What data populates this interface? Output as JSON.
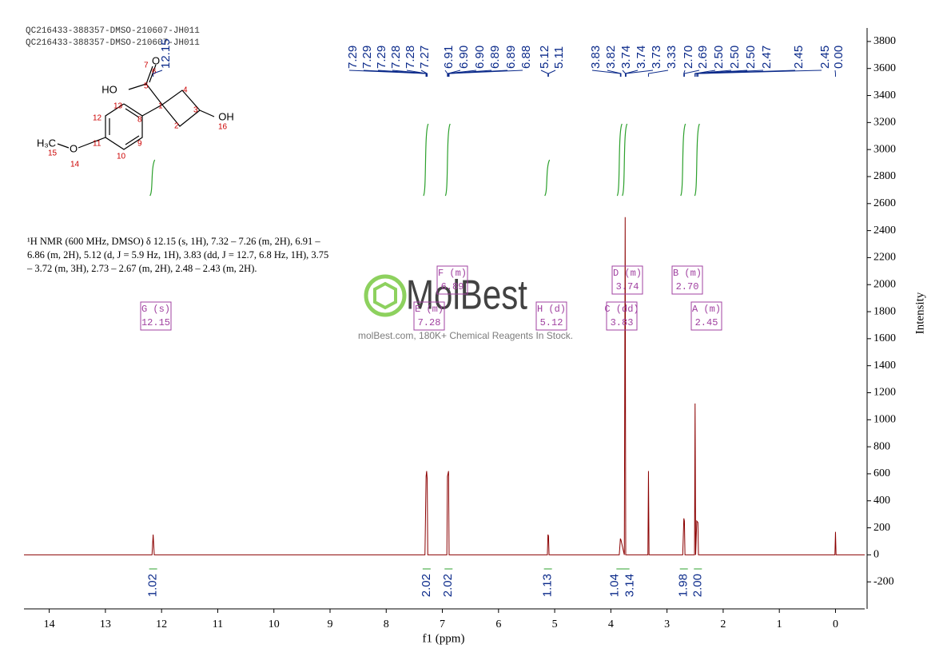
{
  "header": [
    "QC216433-388357-DMSO-210607-JH011",
    "QC216433-388357-DMSO-210607-JH011"
  ],
  "structure": {
    "groups": [
      "HO",
      "O",
      "OH",
      "H₃C",
      "O"
    ],
    "atoms": [
      7,
      5,
      6,
      13,
      12,
      8,
      1,
      4,
      3,
      2,
      16,
      11,
      9,
      10,
      15,
      14
    ]
  },
  "description": "¹H NMR (600 MHz, DMSO) δ 12.15 (s, 1H), 7.32 – 7.26 (m, 2H), 6.91 – 6.86 (m, 2H), 5.12 (d, J = 5.9 Hz, 1H), 3.83 (dd, J = 12.7, 6.8 Hz, 1H), 3.75 – 3.72 (m, 3H), 2.73 – 2.67 (m, 2H), 2.48 – 2.43 (m, 2H).",
  "watermark": {
    "logo": "MolBest",
    "tagline": "molBest.com, 180K+ Chemical Reagents In Stock."
  },
  "chart_data": {
    "type": "nmr",
    "xlabel": "f1 (ppm)",
    "ylabel": "Intensity",
    "color": "#8b0000",
    "xlim": [
      14.45,
      -0.52
    ],
    "ylim": [
      -400,
      3900
    ],
    "xticks": [
      14,
      13,
      12,
      11,
      10,
      9,
      8,
      7,
      6,
      5,
      4,
      3,
      2,
      1,
      0
    ],
    "yticks": [
      -200,
      0,
      200,
      400,
      600,
      800,
      1000,
      1200,
      1400,
      1600,
      1800,
      2000,
      2200,
      2400,
      2600,
      2800,
      3000,
      3200,
      3400,
      3600,
      3800
    ],
    "x": [
      14.45,
      12.17,
      12.15,
      12.13,
      7.31,
      7.29,
      7.28,
      7.27,
      7.26,
      6.92,
      6.91,
      6.89,
      6.88,
      5.13,
      5.12,
      5.11,
      5.1,
      3.85,
      3.83,
      3.82,
      3.76,
      3.745,
      3.735,
      3.34,
      3.33,
      3.32,
      2.72,
      2.7,
      2.69,
      2.68,
      2.51,
      2.5,
      2.49,
      2.47,
      2.45,
      2.44,
      0.01,
      0,
      -0.01,
      -0.52
    ],
    "values": [
      0,
      0,
      150,
      0,
      0,
      580,
      620,
      560,
      0,
      0,
      580,
      620,
      0,
      0,
      150,
      140,
      0,
      0,
      120,
      110,
      0,
      2500,
      0,
      0,
      620,
      0,
      0,
      270,
      250,
      0,
      0,
      1120,
      0,
      250,
      240,
      0,
      0,
      170,
      0,
      0
    ],
    "peak_labels": [
      "12.15",
      "7.29",
      "7.29",
      "7.29",
      "7.28",
      "7.28",
      "7.27",
      "6.91",
      "6.90",
      "6.90",
      "6.89",
      "6.89",
      "6.88",
      "5.12",
      "5.11",
      "3.83",
      "3.82",
      "3.74",
      "3.74",
      "3.73",
      "3.33",
      "2.70",
      "2.69",
      "2.50",
      "2.50",
      "2.50",
      "2.47",
      "2.45",
      "2.45",
      "0.00"
    ],
    "integrals": {
      "x": [
        12.15,
        7.28,
        6.89,
        5.12,
        3.83,
        3.74,
        2.7,
        2.45
      ],
      "values": [
        1.02,
        2.02,
        2.02,
        1.13,
        1.04,
        3.14,
        1.98,
        2
      ],
      "value_labels": [
        "1.02",
        "2.02",
        "2.02",
        "1.13",
        "1.04",
        "3.14",
        "1.98",
        "2.00"
      ]
    },
    "multiplets": [
      {
        "label": "G (s)",
        "shift": "12.15"
      },
      {
        "label": "E (m)",
        "shift": "7.28"
      },
      {
        "label": "F (m)",
        "shift": "6.89"
      },
      {
        "label": "H (d)",
        "shift": "5.12"
      },
      {
        "label": "C (dd)",
        "shift": "3.83"
      },
      {
        "label": "D (m)",
        "shift": "3.74"
      },
      {
        "label": "B (m)",
        "shift": "2.70"
      },
      {
        "label": "A (m)",
        "shift": "2.45"
      }
    ]
  }
}
